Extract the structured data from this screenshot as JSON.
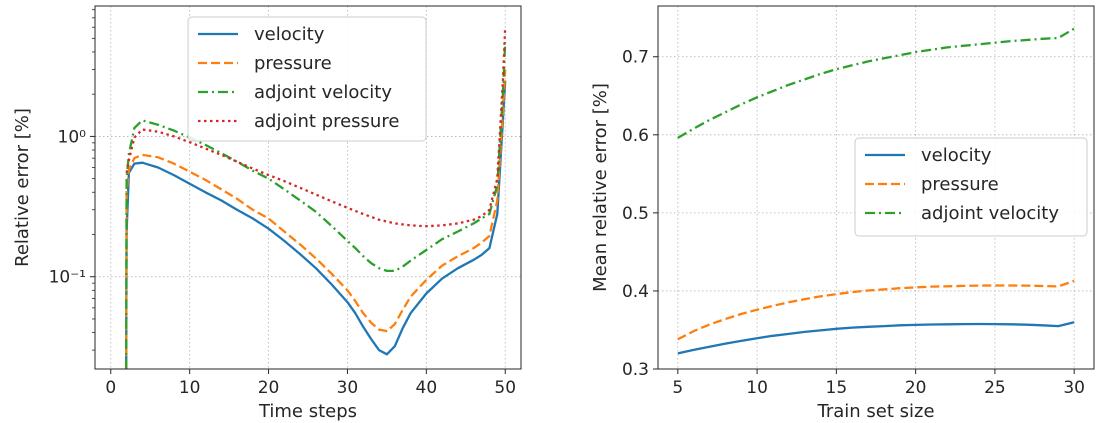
{
  "chart_data": [
    {
      "type": "line",
      "xlabel": "Time steps",
      "ylabel": "Relative error [%]",
      "xlim": [
        -2,
        52
      ],
      "ylim": [
        0.022,
        8.5
      ],
      "yscale": "log",
      "grid": true,
      "legend_position": "upper center",
      "xticks": [
        0,
        10,
        20,
        30,
        40,
        50
      ],
      "yticks": [
        {
          "value": 0.1,
          "label": "10⁻¹"
        },
        {
          "value": 1,
          "label": "10⁰"
        }
      ],
      "series": [
        {
          "name": "velocity",
          "color": "#1f77b4",
          "dash": "solid",
          "x": [
            1.95,
            2,
            2.3,
            3,
            4,
            6,
            8,
            10,
            12,
            14,
            16,
            18,
            20,
            22,
            24,
            26,
            28,
            30,
            31,
            32,
            33,
            34,
            35,
            36,
            37,
            38,
            40,
            42,
            44,
            46,
            47,
            48,
            49,
            49.7,
            50
          ],
          "y": [
            0.022,
            0.21,
            0.55,
            0.64,
            0.65,
            0.6,
            0.53,
            0.46,
            0.4,
            0.35,
            0.3,
            0.26,
            0.22,
            0.18,
            0.145,
            0.115,
            0.088,
            0.066,
            0.055,
            0.044,
            0.036,
            0.03,
            0.028,
            0.032,
            0.043,
            0.055,
            0.076,
            0.097,
            0.115,
            0.132,
            0.143,
            0.16,
            0.28,
            1.3,
            2.5
          ]
        },
        {
          "name": "pressure",
          "color": "#ff7f0e",
          "dash": "dashed",
          "x": [
            1.95,
            2,
            2.3,
            3,
            4,
            6,
            8,
            10,
            12,
            14,
            16,
            18,
            20,
            22,
            24,
            26,
            28,
            30,
            31,
            32,
            33,
            34,
            35,
            36,
            37,
            38,
            40,
            42,
            44,
            46,
            47,
            48,
            49,
            49.7,
            50
          ],
          "y": [
            0.022,
            0.4,
            0.58,
            0.7,
            0.74,
            0.71,
            0.64,
            0.56,
            0.49,
            0.42,
            0.36,
            0.3,
            0.26,
            0.21,
            0.17,
            0.135,
            0.105,
            0.08,
            0.067,
            0.055,
            0.047,
            0.042,
            0.041,
            0.046,
            0.058,
            0.072,
            0.095,
            0.12,
            0.14,
            0.16,
            0.175,
            0.195,
            0.35,
            1.5,
            3.0
          ]
        },
        {
          "name": "adjoint velocity",
          "color": "#2ca02c",
          "dash": "dashdot",
          "x": [
            1.95,
            2,
            2.3,
            3,
            4,
            6,
            8,
            10,
            12,
            14,
            16,
            18,
            20,
            22,
            24,
            26,
            28,
            30,
            31,
            32,
            33,
            34,
            35,
            36,
            37,
            38,
            40,
            42,
            44,
            46,
            47,
            48,
            49,
            49.7,
            50
          ],
          "y": [
            0.022,
            0.5,
            0.75,
            1.15,
            1.3,
            1.21,
            1.1,
            0.98,
            0.87,
            0.76,
            0.66,
            0.57,
            0.5,
            0.42,
            0.35,
            0.29,
            0.23,
            0.18,
            0.16,
            0.14,
            0.125,
            0.115,
            0.11,
            0.11,
            0.118,
            0.13,
            0.155,
            0.185,
            0.21,
            0.24,
            0.26,
            0.28,
            0.45,
            2.0,
            4.7
          ]
        },
        {
          "name": "adjoint pressure",
          "color": "#d62728",
          "dash": "dotted",
          "x": [
            2,
            2.3,
            3,
            4,
            6,
            8,
            10,
            12,
            14,
            16,
            18,
            20,
            22,
            24,
            26,
            28,
            30,
            32,
            34,
            36,
            38,
            40,
            42,
            44,
            46,
            47,
            48,
            49,
            49.7,
            50
          ],
          "y": [
            0.55,
            0.68,
            0.98,
            1.12,
            1.08,
            1.0,
            0.91,
            0.82,
            0.74,
            0.66,
            0.59,
            0.53,
            0.48,
            0.43,
            0.385,
            0.345,
            0.31,
            0.28,
            0.255,
            0.24,
            0.232,
            0.229,
            0.232,
            0.24,
            0.255,
            0.27,
            0.3,
            0.5,
            2.5,
            6.0
          ]
        }
      ]
    },
    {
      "type": "line",
      "xlabel": "Train set size",
      "ylabel": "Mean relative error [%]",
      "xlim": [
        3.75,
        31.25
      ],
      "ylim": [
        0.3,
        0.765
      ],
      "grid": true,
      "legend_position": "center right",
      "xticks": [
        5,
        10,
        15,
        20,
        25,
        30
      ],
      "yticks": [
        0.3,
        0.4,
        0.5,
        0.6,
        0.7
      ],
      "series": [
        {
          "name": "velocity",
          "color": "#1f77b4",
          "dash": "solid",
          "x": [
            5,
            6,
            7,
            8,
            9,
            10,
            11,
            12,
            13,
            14,
            15,
            16,
            17,
            18,
            19,
            20,
            21,
            22,
            23,
            24,
            25,
            26,
            27,
            28,
            29,
            30
          ],
          "y": [
            0.32,
            0.3245,
            0.3285,
            0.3325,
            0.336,
            0.3395,
            0.3425,
            0.345,
            0.3475,
            0.3495,
            0.3515,
            0.353,
            0.354,
            0.355,
            0.356,
            0.3565,
            0.357,
            0.3573,
            0.3575,
            0.3576,
            0.3575,
            0.3572,
            0.3567,
            0.356,
            0.355,
            0.36
          ]
        },
        {
          "name": "pressure",
          "color": "#ff7f0e",
          "dash": "dashed",
          "x": [
            5,
            6,
            7,
            8,
            9,
            10,
            11,
            12,
            13,
            14,
            15,
            16,
            17,
            18,
            19,
            20,
            21,
            22,
            23,
            24,
            25,
            26,
            27,
            28,
            29,
            30
          ],
          "y": [
            0.338,
            0.3485,
            0.357,
            0.364,
            0.3705,
            0.376,
            0.381,
            0.3855,
            0.3895,
            0.393,
            0.396,
            0.3985,
            0.4005,
            0.402,
            0.4035,
            0.4045,
            0.4055,
            0.406,
            0.4065,
            0.4068,
            0.407,
            0.407,
            0.4068,
            0.4063,
            0.4058,
            0.413
          ]
        },
        {
          "name": "adjoint velocity",
          "color": "#2ca02c",
          "dash": "dashdot",
          "x": [
            5,
            6,
            7,
            8,
            9,
            10,
            11,
            12,
            13,
            14,
            15,
            16,
            17,
            18,
            19,
            20,
            21,
            22,
            23,
            24,
            25,
            26,
            27,
            28,
            29,
            30
          ],
          "y": [
            0.596,
            0.608,
            0.619,
            0.629,
            0.639,
            0.648,
            0.656,
            0.664,
            0.671,
            0.678,
            0.684,
            0.689,
            0.694,
            0.698,
            0.702,
            0.706,
            0.709,
            0.712,
            0.714,
            0.716,
            0.718,
            0.72,
            0.7215,
            0.723,
            0.724,
            0.736
          ]
        }
      ]
    }
  ]
}
